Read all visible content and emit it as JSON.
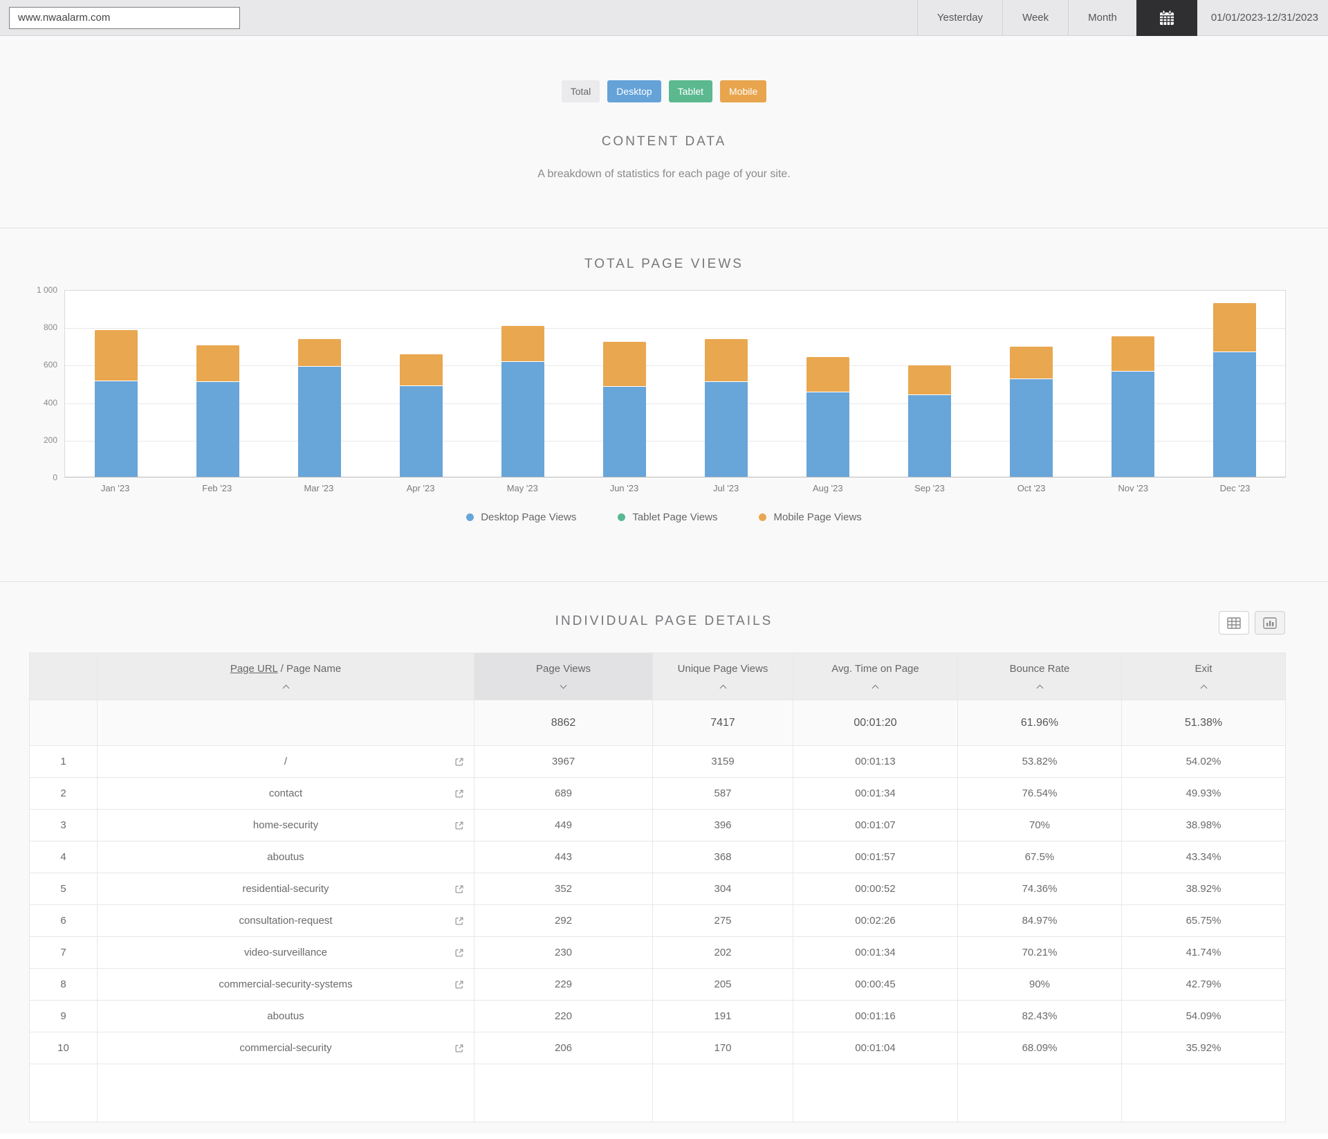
{
  "header": {
    "url_input": "www.nwaalarm.com",
    "range_tabs": [
      "Yesterday",
      "Week",
      "Month"
    ],
    "date_range": "01/01/2023-12/31/2023"
  },
  "device_filters": [
    {
      "label": "Total",
      "color": "#ebebed",
      "active": false
    },
    {
      "label": "Desktop",
      "color": "#64a2d8",
      "active": true
    },
    {
      "label": "Tablet",
      "color": "#5bb88f",
      "active": true
    },
    {
      "label": "Mobile",
      "color": "#e8a54d",
      "active": true
    }
  ],
  "content_section": {
    "title": "CONTENT DATA",
    "subtitle": "A breakdown of statistics for each page of your site."
  },
  "chart_section": {
    "title": "TOTAL PAGE VIEWS"
  },
  "chart_data": {
    "type": "bar",
    "stacked": true,
    "title": "TOTAL PAGE VIEWS",
    "categories": [
      "Jan '23",
      "Feb '23",
      "Mar '23",
      "Apr '23",
      "May '23",
      "Jun '23",
      "Jul '23",
      "Aug '23",
      "Sep '23",
      "Oct '23",
      "Nov '23",
      "Dec '23"
    ],
    "series": [
      {
        "name": "Desktop Page Views",
        "color": "#68a5d9",
        "values": [
          510,
          505,
          585,
          485,
          612,
          478,
          505,
          452,
          437,
          522,
          562,
          665
        ]
      },
      {
        "name": "Tablet Page Views",
        "color": "#58b894",
        "values": [
          3,
          3,
          5,
          3,
          3,
          3,
          4,
          3,
          3,
          3,
          4,
          3
        ]
      },
      {
        "name": "Mobile Page Views",
        "color": "#e9a750",
        "values": [
          272,
          198,
          148,
          167,
          193,
          240,
          230,
          186,
          156,
          172,
          188,
          262
        ]
      }
    ],
    "ylim": [
      0,
      1000
    ],
    "yticks": [
      0,
      200,
      400,
      600,
      800,
      1000
    ],
    "ytick_labels": [
      "0",
      "200",
      "400",
      "600",
      "800",
      "1 000"
    ],
    "grid": true,
    "legend_position": "bottom"
  },
  "details_section": {
    "title": "INDIVIDUAL PAGE DETAILS"
  },
  "table": {
    "columns": [
      {
        "label": "",
        "sort": null
      },
      {
        "label_link": "Page URL",
        "label_rest": " / Page Name",
        "sort": "asc",
        "active": false
      },
      {
        "label": "Page Views",
        "sort": "desc",
        "active": true
      },
      {
        "label": "Unique Page Views",
        "sort": "asc",
        "active": false
      },
      {
        "label": "Avg. Time on Page",
        "sort": "asc",
        "active": false
      },
      {
        "label": "Bounce Rate",
        "sort": "asc",
        "active": false
      },
      {
        "label": "Exit",
        "sort": "asc",
        "active": false
      }
    ],
    "summary": {
      "page_views": "8862",
      "unique_page_views": "7417",
      "avg_time": "00:01:20",
      "bounce_rate": "61.96%",
      "exit": "51.38%"
    },
    "rows": [
      {
        "rank": "1",
        "page": "/",
        "external_link": true,
        "page_views": "3967",
        "unique": "3159",
        "avg_time": "00:01:13",
        "bounce": "53.82%",
        "exit": "54.02%"
      },
      {
        "rank": "2",
        "page": "contact",
        "external_link": true,
        "page_views": "689",
        "unique": "587",
        "avg_time": "00:01:34",
        "bounce": "76.54%",
        "exit": "49.93%"
      },
      {
        "rank": "3",
        "page": "home-security",
        "external_link": true,
        "page_views": "449",
        "unique": "396",
        "avg_time": "00:01:07",
        "bounce": "70%",
        "exit": "38.98%"
      },
      {
        "rank": "4",
        "page": "aboutus",
        "external_link": false,
        "page_views": "443",
        "unique": "368",
        "avg_time": "00:01:57",
        "bounce": "67.5%",
        "exit": "43.34%"
      },
      {
        "rank": "5",
        "page": "residential-security",
        "external_link": true,
        "page_views": "352",
        "unique": "304",
        "avg_time": "00:00:52",
        "bounce": "74.36%",
        "exit": "38.92%"
      },
      {
        "rank": "6",
        "page": "consultation-request",
        "external_link": true,
        "page_views": "292",
        "unique": "275",
        "avg_time": "00:02:26",
        "bounce": "84.97%",
        "exit": "65.75%"
      },
      {
        "rank": "7",
        "page": "video-surveillance",
        "external_link": true,
        "page_views": "230",
        "unique": "202",
        "avg_time": "00:01:34",
        "bounce": "70.21%",
        "exit": "41.74%"
      },
      {
        "rank": "8",
        "page": "commercial-security-systems",
        "external_link": true,
        "page_views": "229",
        "unique": "205",
        "avg_time": "00:00:45",
        "bounce": "90%",
        "exit": "42.79%"
      },
      {
        "rank": "9",
        "page": "aboutus",
        "external_link": false,
        "page_views": "220",
        "unique": "191",
        "avg_time": "00:01:16",
        "bounce": "82.43%",
        "exit": "54.09%"
      },
      {
        "rank": "10",
        "page": "commercial-security",
        "external_link": true,
        "page_views": "206",
        "unique": "170",
        "avg_time": "00:01:04",
        "bounce": "68.09%",
        "exit": "35.92%"
      }
    ]
  }
}
